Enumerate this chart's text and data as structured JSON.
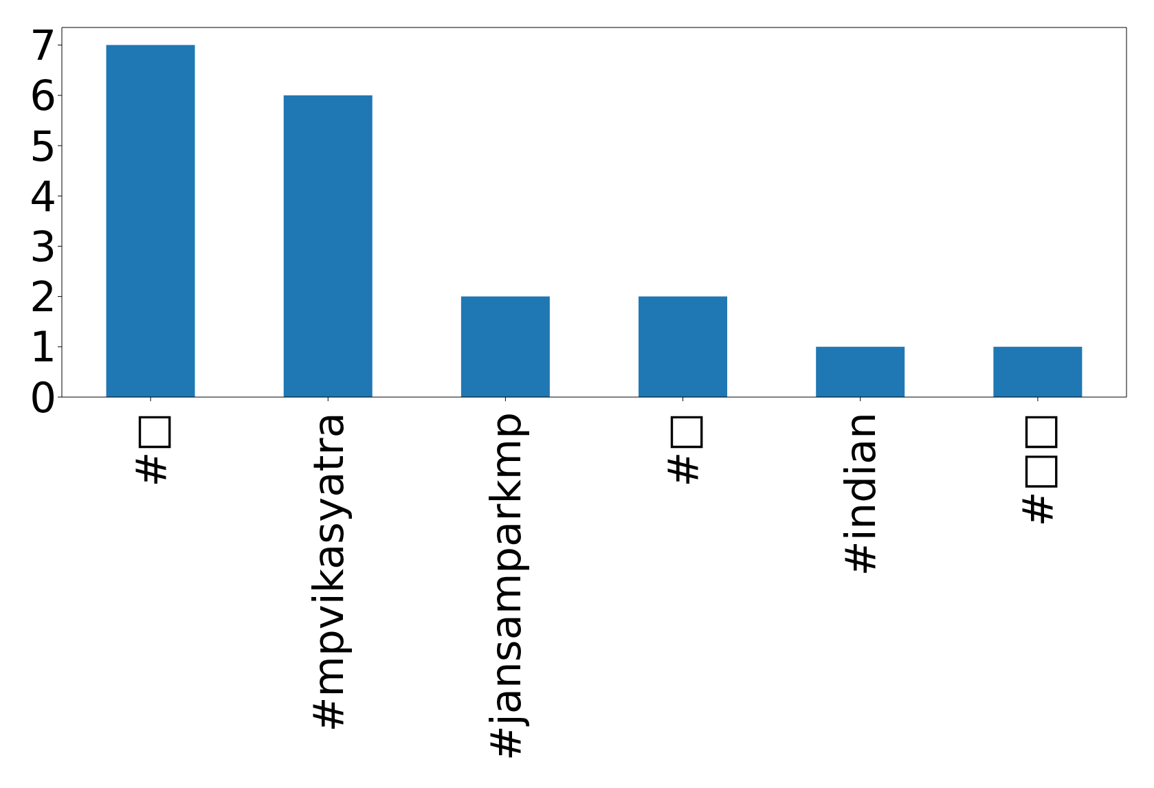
{
  "chart_data": {
    "type": "bar",
    "categories": [
      "#□",
      "#mpvikasyatra",
      "#jansamparkmp",
      "#□",
      "#indian",
      "#□□"
    ],
    "values": [
      7,
      6,
      2,
      2,
      1,
      1
    ],
    "color": "#1f77b4",
    "ylim": [
      0,
      7.35
    ],
    "yticks": [
      0,
      1,
      2,
      3,
      4,
      5,
      6,
      7
    ],
    "grid": false,
    "legend": false
  }
}
